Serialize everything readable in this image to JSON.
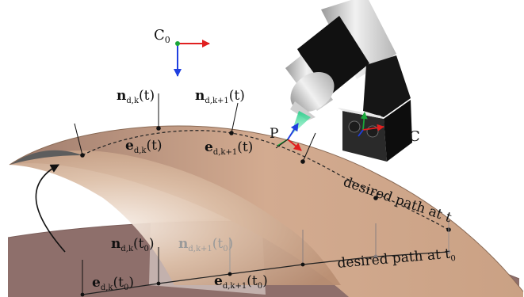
{
  "frames": {
    "c0_label": "C",
    "c0_sub": "0",
    "camera_label": "C",
    "point_label": "P"
  },
  "vectors_t": {
    "n_k": {
      "main": "n",
      "sub": "d,k",
      "arg": "(t)"
    },
    "n_k1": {
      "main": "n",
      "sub": "d,k+1",
      "arg": "(t)"
    },
    "e_k": {
      "main": "e",
      "sub": "d,k",
      "arg": "(t)"
    },
    "e_k1": {
      "main": "e",
      "sub": "d,k+1",
      "arg": "(t)"
    }
  },
  "vectors_t0": {
    "n_k": {
      "main": "n",
      "sub": "d,k",
      "arg": "(t",
      "arg_sub": "0",
      "close": ")"
    },
    "n_k1": {
      "main": "n",
      "sub": "d,k+1",
      "arg": "(t",
      "arg_sub": "0",
      "close": ")"
    },
    "e_k": {
      "main": "e",
      "sub": "d,k",
      "arg": "(t",
      "arg_sub": "0",
      "close": ")"
    },
    "e_k1": {
      "main": "e",
      "sub": "d,k+1",
      "arg": "(t",
      "arg_sub": "0",
      "close": ")"
    }
  },
  "paths": {
    "path_t": "desired path at t",
    "path_t0_main": "desired path at t",
    "path_t0_sub": "0"
  },
  "colors": {
    "surface_top": "#caa184",
    "surface_bottom": "#8e6e6c",
    "tool_body": "#d6d6d6",
    "tool_band": "#111111",
    "beam": "#3fd79a",
    "axis_x": "#e02020",
    "axis_y": "#1aa63a",
    "axis_z": "#1f3fe0"
  }
}
